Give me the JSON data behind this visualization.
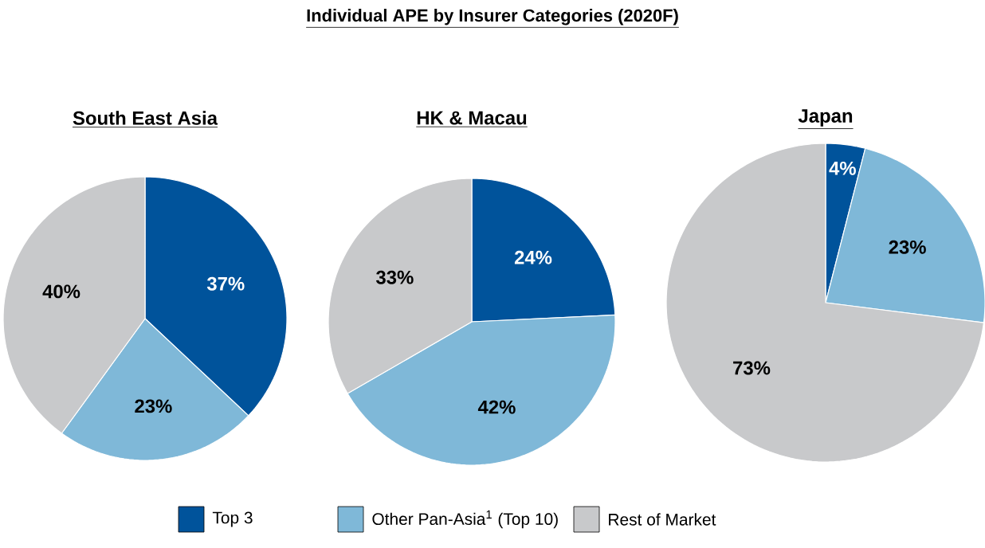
{
  "chart_data": [
    {
      "type": "pie",
      "title": "South East Asia",
      "annotations": [
        "Individual APE by Insurer Categories (2020F)"
      ],
      "categories": [
        "Top 3",
        "Other Pan-Asia$^{1}$ (Top 10)",
        "Rest of Market"
      ],
      "values": [
        37,
        23,
        40
      ],
      "value_labels": [
        "37%",
        "23%",
        "40%"
      ],
      "colors": [
        "#00539b",
        "#7fb8d8",
        "#c8c9cb"
      ],
      "legend": "bottom"
    },
    {
      "type": "pie",
      "title": "HK & Macau",
      "values": [
        24,
        42,
        33
      ],
      "value_labels": [
        "24%",
        "42%",
        "33%"
      ],
      "colors": [
        "#00539b",
        "#7fb8d8",
        "#c8c9cb"
      ]
    },
    {
      "type": "pie",
      "title": "Japan",
      "values": [
        4,
        23,
        73
      ],
      "value_labels": [
        "4%",
        "23%",
        "73%"
      ],
      "colors": [
        "#00539b",
        "#7fb8d8",
        "#c8c9cb"
      ]
    }
  ]
}
